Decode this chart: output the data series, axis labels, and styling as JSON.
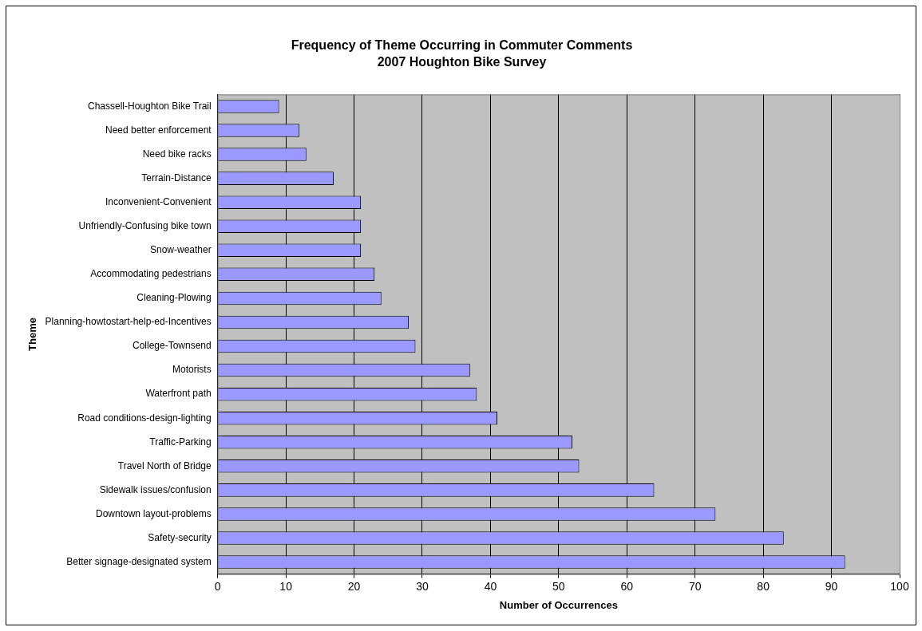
{
  "chart_data": {
    "type": "bar",
    "orientation": "horizontal",
    "title": "Frequency of Theme Occurring in Commuter Comments",
    "subtitle": "2007 Houghton Bike Survey",
    "xlabel": "Number of Occurrences",
    "ylabel": "Theme",
    "categories": [
      "Chassell-Houghton Bike Trail",
      "Need better enforcement",
      "Need bike racks",
      "Terrain-Distance",
      "Inconvenient-Convenient",
      "Unfriendly-Confusing bike town",
      "Snow-weather",
      "Accommodating pedestrians",
      "Cleaning-Plowing",
      "Planning-howtostart-help-ed-Incentives",
      "College-Townsend",
      "Motorists",
      "Waterfront path",
      "Road conditions-design-lighting",
      "Traffic-Parking",
      "Travel North of Bridge",
      "Sidewalk issues/confusion",
      "Downtown layout-problems",
      "Safety-security",
      "Better signage-designated system"
    ],
    "values": [
      9,
      12,
      13,
      17,
      21,
      21,
      21,
      23,
      24,
      28,
      29,
      37,
      38,
      41,
      52,
      53,
      64,
      73,
      83,
      92
    ],
    "color": "#9999ff",
    "xlim": [
      0,
      100
    ],
    "xticks": [
      0,
      10,
      20,
      30,
      40,
      50,
      60,
      70,
      80,
      90,
      100
    ],
    "grid": "x"
  }
}
